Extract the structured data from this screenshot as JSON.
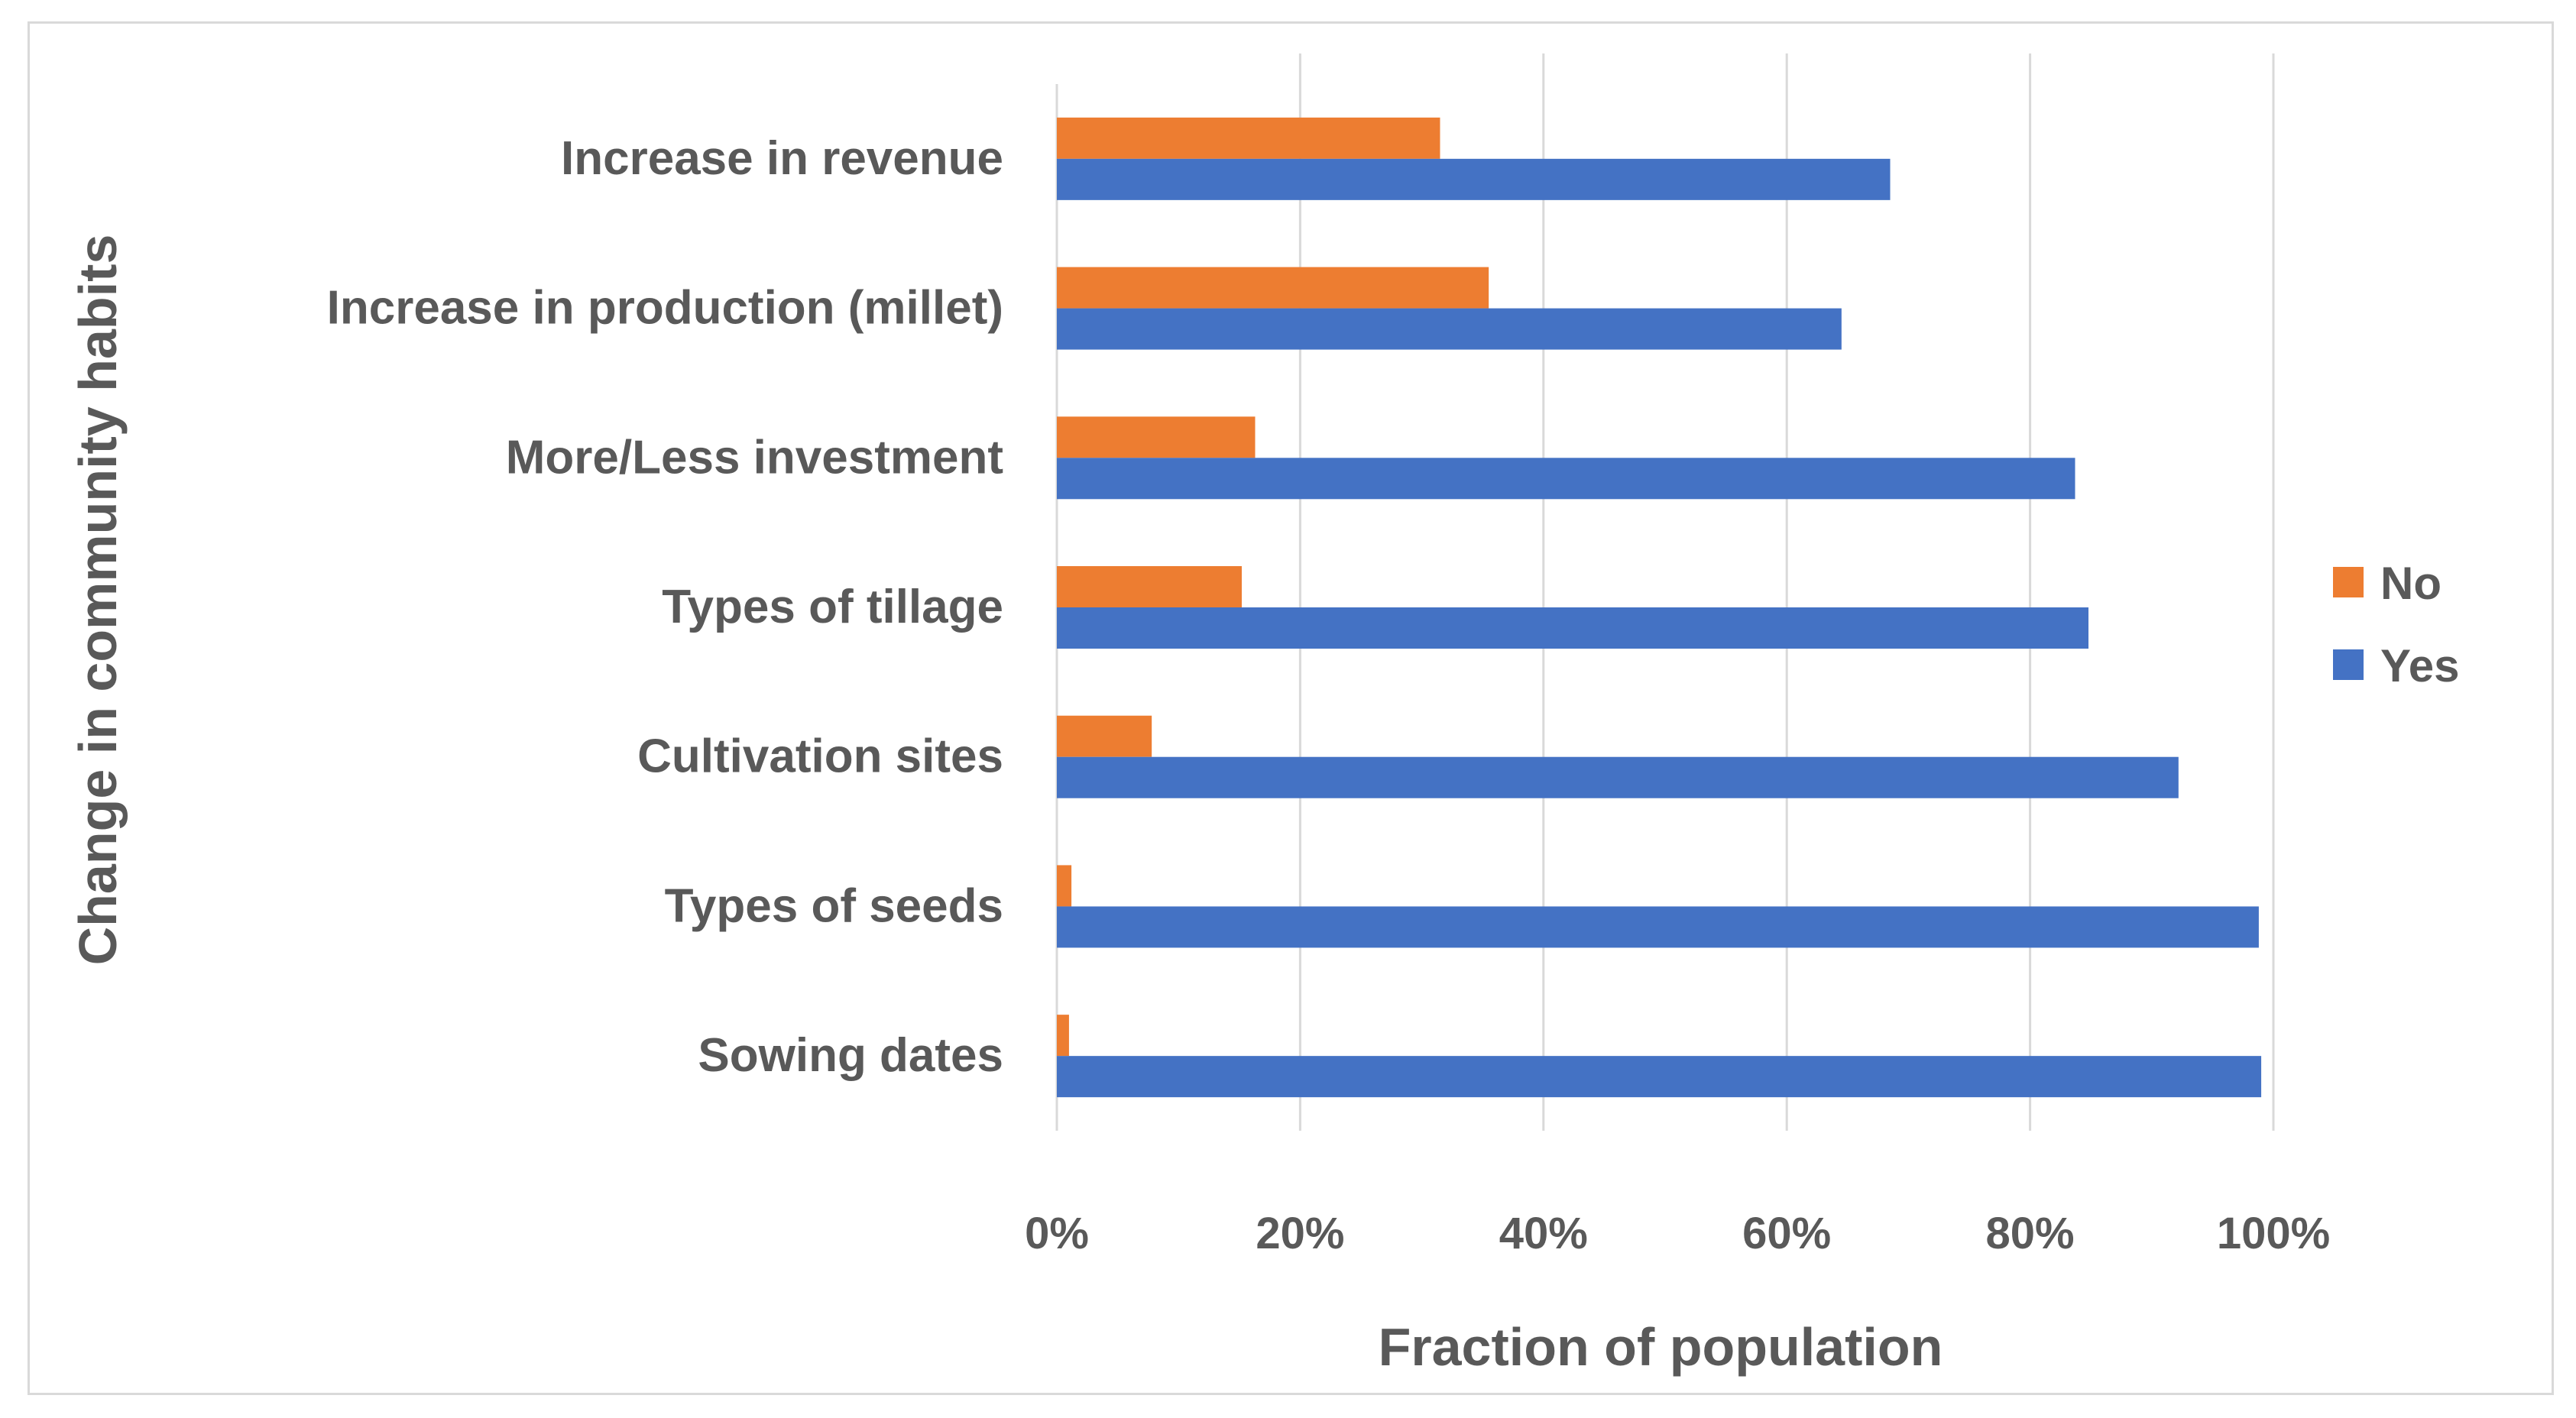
{
  "chart_data": {
    "type": "bar",
    "orientation": "horizontal",
    "title": "",
    "xlabel": "Fraction of population",
    "ylabel": "Change in community habits",
    "xlim": [
      0,
      100
    ],
    "xticks": [
      "0%",
      "20%",
      "40%",
      "60%",
      "80%",
      "100%"
    ],
    "categories": [
      "Increase in revenue",
      "Increase in production (millet)",
      "More/Less investment",
      "Types of tillage",
      "Cultivation sites",
      "Types of seeds",
      "Sowing dates"
    ],
    "series": [
      {
        "name": "No",
        "color": "#ED7D31",
        "values": [
          31.5,
          35.5,
          16.3,
          15.2,
          7.8,
          1.2,
          1.0
        ]
      },
      {
        "name": "Yes",
        "color": "#4472C4",
        "values": [
          68.5,
          64.5,
          83.7,
          84.8,
          92.2,
          98.8,
          99.0
        ]
      }
    ],
    "legend": {
      "position": "right",
      "order": [
        "No",
        "Yes"
      ]
    },
    "grid": true
  }
}
